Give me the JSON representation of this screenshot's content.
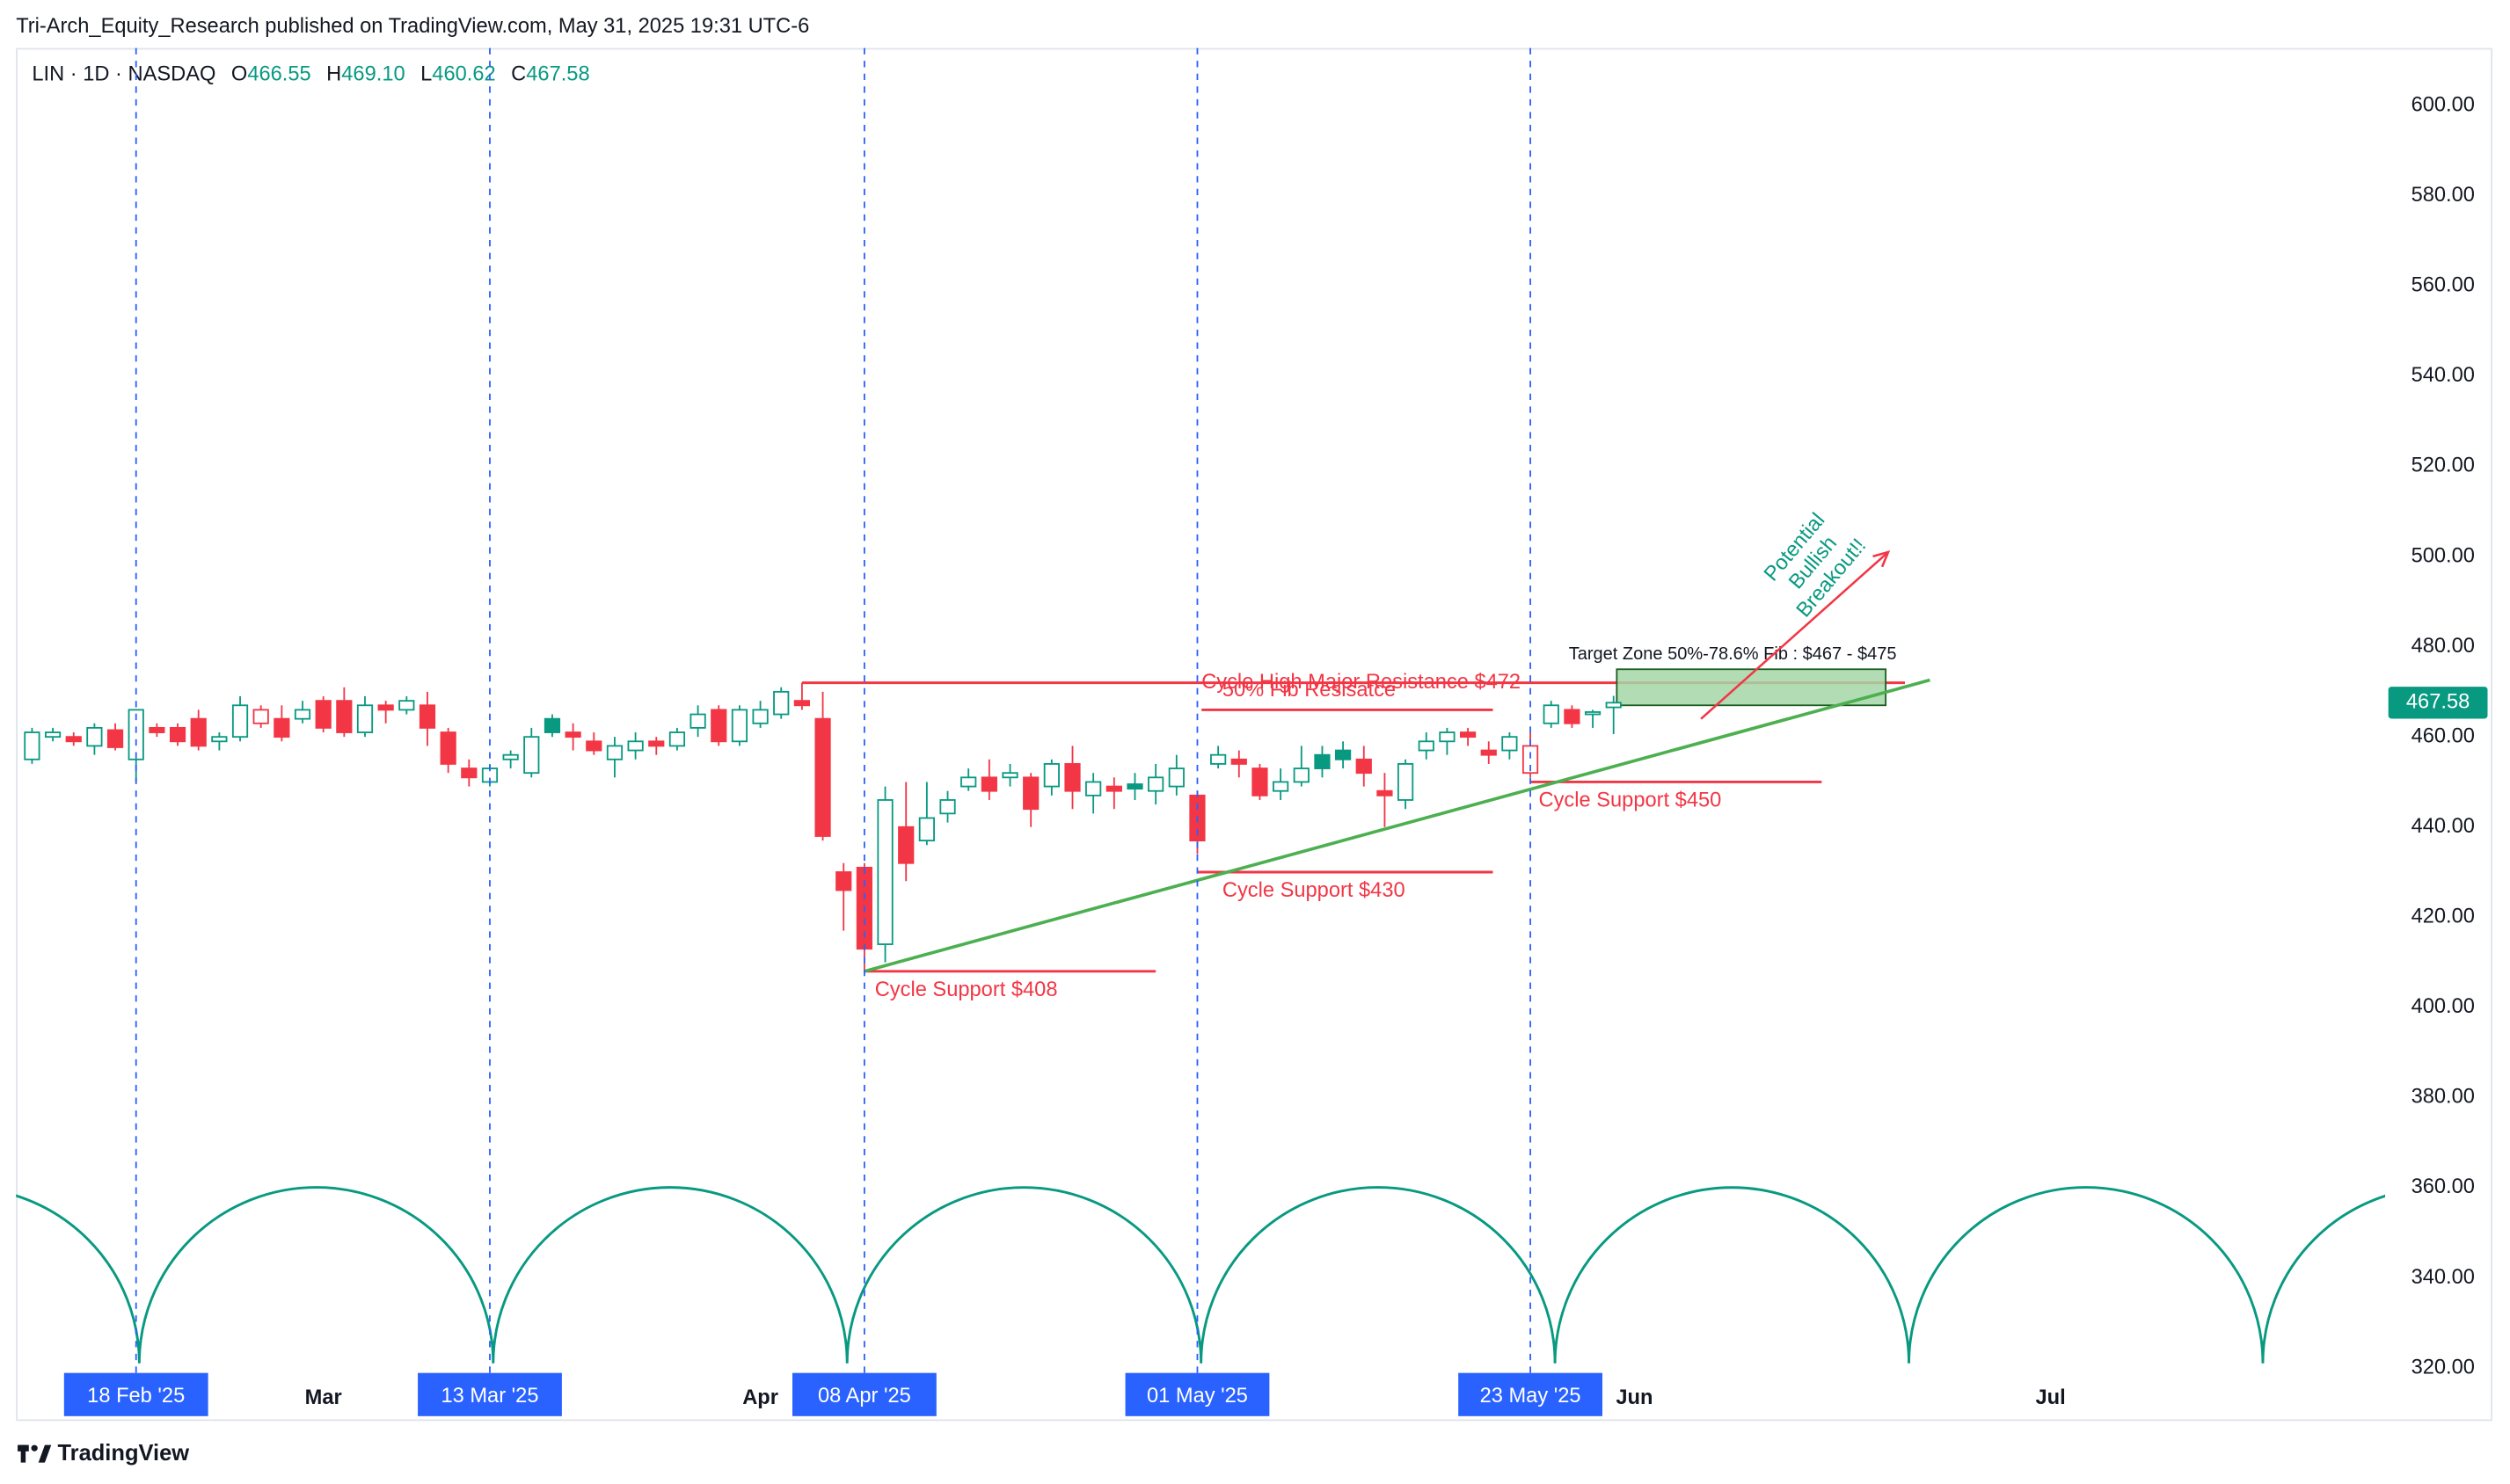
{
  "header": "Tri-Arch_Equity_Research published on TradingView.com, May 31, 2025 19:31 UTC-6",
  "footer": "TradingView",
  "chart_data": {
    "type": "candlestick",
    "symbol": "LIN · 1D · NASDAQ",
    "ohlc_labels": [
      "O",
      "H",
      "L",
      "C"
    ],
    "ohlc_value_labels": [
      "466.55",
      "469.10",
      "460.62",
      "467.58"
    ],
    "up_color": "#089981",
    "down_color": "#f23645",
    "ylim": [
      318.2,
      612.8
    ],
    "yticks": [
      {
        "value": 320,
        "label": "320.00"
      },
      {
        "value": 340,
        "label": "340.00"
      },
      {
        "value": 360,
        "label": "360.00"
      },
      {
        "value": 380,
        "label": "380.00"
      },
      {
        "value": 400,
        "label": "400.00"
      },
      {
        "value": 420,
        "label": "420.00"
      },
      {
        "value": 440,
        "label": "440.00"
      },
      {
        "value": 460,
        "label": "460.00"
      },
      {
        "value": 480,
        "label": "480.00"
      },
      {
        "value": 500,
        "label": "500.00"
      },
      {
        "value": 520,
        "label": "520.00"
      },
      {
        "value": 540,
        "label": "540.00"
      },
      {
        "value": 560,
        "label": "560.00"
      },
      {
        "value": 580,
        "label": "580.00"
      },
      {
        "value": 600,
        "label": "600.00"
      }
    ],
    "xticks": [
      {
        "value": 5,
        "label": "18 Feb '25",
        "highlight": true
      },
      {
        "value": 14,
        "label": "Mar",
        "highlight": false
      },
      {
        "value": 22,
        "label": "13 Mar '25",
        "highlight": true
      },
      {
        "value": 35,
        "label": "Apr",
        "highlight": false
      },
      {
        "value": 40,
        "label": "08 Apr '25",
        "highlight": true
      },
      {
        "value": 56,
        "label": "01 May '25",
        "highlight": true
      },
      {
        "value": 72,
        "label": "23 May '25",
        "highlight": true
      },
      {
        "value": 77,
        "label": "Jun",
        "highlight": false
      },
      {
        "value": 97,
        "label": "Jul",
        "highlight": false
      }
    ],
    "candles": [
      [
        455,
        462,
        454,
        461
      ],
      [
        460,
        462,
        459,
        461
      ],
      [
        460,
        461,
        458,
        459
      ],
      [
        458,
        463,
        456,
        462
      ],
      [
        461.5,
        463,
        457,
        457.7
      ],
      [
        455,
        466,
        450,
        466
      ],
      [
        462,
        463,
        460,
        461
      ],
      [
        462,
        463,
        458,
        459
      ],
      [
        464,
        466,
        457,
        458
      ],
      [
        459,
        461,
        457,
        460
      ],
      [
        460,
        469,
        459,
        467
      ],
      [
        463,
        467,
        462,
        466
      ],
      [
        464,
        467,
        459,
        460
      ],
      [
        464,
        468,
        463,
        466
      ],
      [
        468,
        469,
        461,
        462
      ],
      [
        468,
        471,
        460,
        461
      ],
      [
        461,
        469,
        460,
        467
      ],
      [
        467,
        468,
        463,
        466
      ],
      [
        466,
        469,
        465,
        468
      ],
      [
        467,
        470,
        458,
        462
      ],
      [
        461,
        462,
        452,
        454
      ],
      [
        453,
        455,
        449,
        451
      ],
      [
        450,
        454,
        449,
        453
      ],
      [
        455,
        457,
        453,
        456
      ],
      [
        452,
        462,
        451,
        460
      ],
      [
        464,
        465,
        460,
        461
      ],
      [
        461,
        463,
        457,
        460
      ],
      [
        459,
        461,
        456,
        457
      ],
      [
        455,
        460,
        451,
        458
      ],
      [
        457,
        461,
        455,
        459
      ],
      [
        459,
        460,
        456,
        458
      ],
      [
        458,
        462,
        457,
        461
      ],
      [
        462,
        467,
        460,
        465
      ],
      [
        466,
        467,
        458,
        459
      ],
      [
        459,
        467,
        458,
        466
      ],
      [
        463,
        468,
        462,
        466
      ],
      [
        465,
        471,
        464,
        470
      ],
      [
        468,
        472,
        466,
        467
      ],
      [
        464,
        470,
        437,
        438
      ],
      [
        430,
        432,
        417,
        426
      ],
      [
        431,
        432,
        408,
        413
      ],
      [
        414,
        449,
        410,
        446
      ],
      [
        440,
        450,
        428,
        432
      ],
      [
        437,
        450,
        436,
        442
      ],
      [
        443,
        448,
        441,
        446
      ],
      [
        449,
        453,
        448,
        451
      ],
      [
        451,
        455,
        446,
        448
      ],
      [
        451,
        454,
        449,
        452
      ],
      [
        451,
        452,
        440,
        444
      ],
      [
        449,
        455,
        447,
        454
      ],
      [
        454,
        458,
        444,
        448
      ],
      [
        447,
        452,
        443,
        450
      ],
      [
        449,
        451,
        444,
        448
      ],
      [
        449.5,
        452,
        446,
        448.5
      ],
      [
        448,
        454,
        445,
        451
      ],
      [
        449,
        456,
        447,
        453
      ],
      [
        447,
        448,
        434,
        437
      ],
      [
        454,
        458,
        453,
        456
      ],
      [
        455,
        457,
        451,
        454
      ],
      [
        453,
        454,
        446,
        447
      ],
      [
        448,
        453,
        446,
        450
      ],
      [
        450,
        458,
        449,
        453
      ],
      [
        456,
        458,
        451,
        453
      ],
      [
        457,
        459,
        453,
        455
      ],
      [
        455,
        458,
        449,
        452
      ],
      [
        448,
        452,
        440,
        447
      ],
      [
        446,
        455,
        444,
        454
      ],
      [
        457,
        461,
        455,
        459
      ],
      [
        459,
        462,
        456,
        461
      ],
      [
        461,
        462,
        458,
        460
      ],
      [
        457,
        459,
        454,
        456
      ],
      [
        457,
        461,
        455,
        460
      ],
      [
        452,
        461,
        451,
        458
      ],
      [
        463,
        468,
        462,
        467
      ],
      [
        466,
        467,
        462,
        463
      ],
      [
        465,
        466,
        462,
        465.5
      ],
      [
        466.55,
        469.1,
        460.62,
        467.58
      ]
    ],
    "levels": [
      {
        "text": "Cycle High Major Resistance $472",
        "price": 472
      },
      {
        "text": "50% Fib Resisatce",
        "price": 466
      },
      {
        "text": "Cycle Support $430",
        "price": 430
      },
      {
        "text": "Cycle Support $408",
        "price": 408
      },
      {
        "text": "Cycle Support $450",
        "price": 450
      }
    ],
    "trendline": {
      "start_price": 408,
      "end_price": 472.6,
      "color": "#4caf50"
    },
    "target_zone": {
      "label": "Target Zone 50%-78.6% Fib : $467 - $475",
      "low": 467,
      "high": 475
    },
    "arrow": {
      "text": [
        "Potential",
        "Bullish",
        "Breakout!!"
      ],
      "start_price": 464,
      "end_price": 501
    }
  }
}
